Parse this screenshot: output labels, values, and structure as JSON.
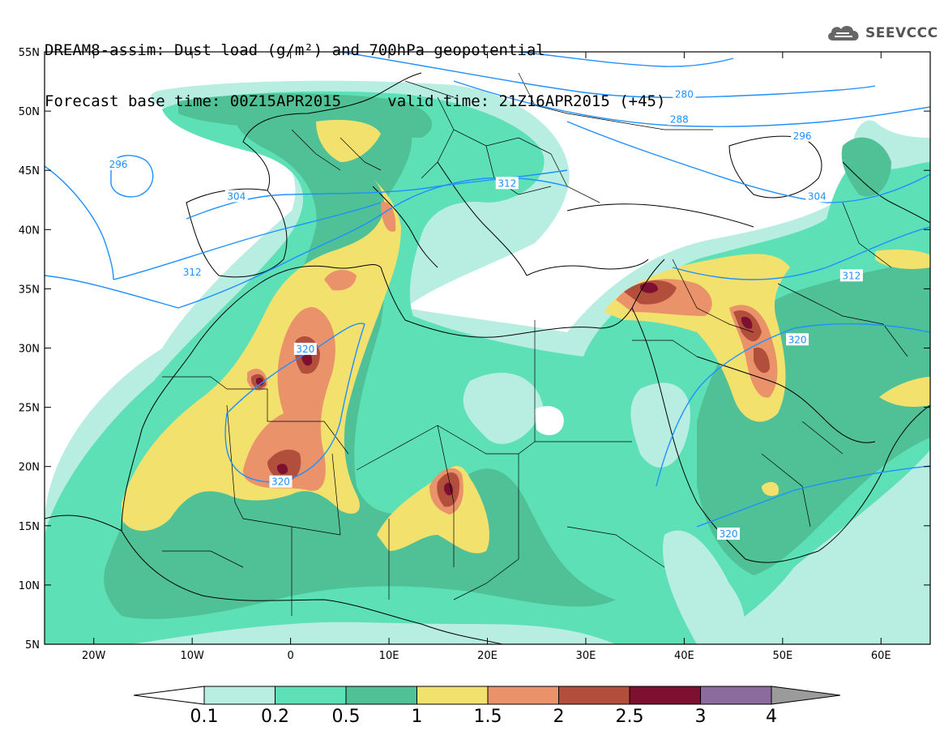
{
  "header": {
    "title": "DREAM8-assim: Dust load (g/m²) and 700hPa geopotential",
    "forecast_base": "Forecast base time: 00Z15APR2015",
    "valid_time": "valid time: 21Z16APR2015 (+45)"
  },
  "logo": {
    "text": "SEEVCCC",
    "icon": "cloud-icon"
  },
  "axes": {
    "lat_labels": [
      "55N",
      "50N",
      "45N",
      "40N",
      "35N",
      "30N",
      "25N",
      "20N",
      "15N",
      "10N",
      "5N"
    ],
    "lat_values": [
      55,
      50,
      45,
      40,
      35,
      30,
      25,
      20,
      15,
      10,
      5
    ],
    "lon_labels": [
      "20W",
      "10W",
      "0",
      "10E",
      "20E",
      "30E",
      "40E",
      "50E",
      "60E"
    ],
    "lon_values": [
      -20,
      -10,
      0,
      10,
      20,
      30,
      40,
      50,
      60
    ],
    "lon_range": [
      -25,
      65
    ],
    "lat_range": [
      5,
      55
    ]
  },
  "geopotential_labels": [
    {
      "text": "280",
      "lon": 40,
      "lat": 51.4
    },
    {
      "text": "288",
      "lon": 39.5,
      "lat": 49.3
    },
    {
      "text": "296",
      "lon": 52,
      "lat": 47.9
    },
    {
      "text": "296",
      "lon": -17.5,
      "lat": 45.5
    },
    {
      "text": "304",
      "lon": -5.5,
      "lat": 42.8
    },
    {
      "text": "304",
      "lon": 53.5,
      "lat": 42.8
    },
    {
      "text": "312",
      "lon": 22,
      "lat": 43.9
    },
    {
      "text": "312",
      "lon": -10,
      "lat": 36.4
    },
    {
      "text": "312",
      "lon": 57,
      "lat": 36.1
    },
    {
      "text": "320",
      "lon": 1.5,
      "lat": 29.9
    },
    {
      "text": "320",
      "lon": 51.5,
      "lat": 30.7
    },
    {
      "text": "320",
      "lon": -1,
      "lat": 18.7
    },
    {
      "text": "320",
      "lon": 44.5,
      "lat": 14.3
    }
  ],
  "colorbar": {
    "labels": [
      "0.1",
      "0.2",
      "0.5",
      "1",
      "1.5",
      "2",
      "2.5",
      "3",
      "4"
    ],
    "colors": [
      "#ffffff",
      "#b8ede1",
      "#5ee0b6",
      "#50c096",
      "#f3e16e",
      "#ea926a",
      "#b24f3c",
      "#7d1030",
      "#8b6a9e",
      "#9b9b9b"
    ]
  },
  "colors": {
    "ocean": "#ffffff",
    "contour": "#1e90ff",
    "coast": "#000000"
  }
}
